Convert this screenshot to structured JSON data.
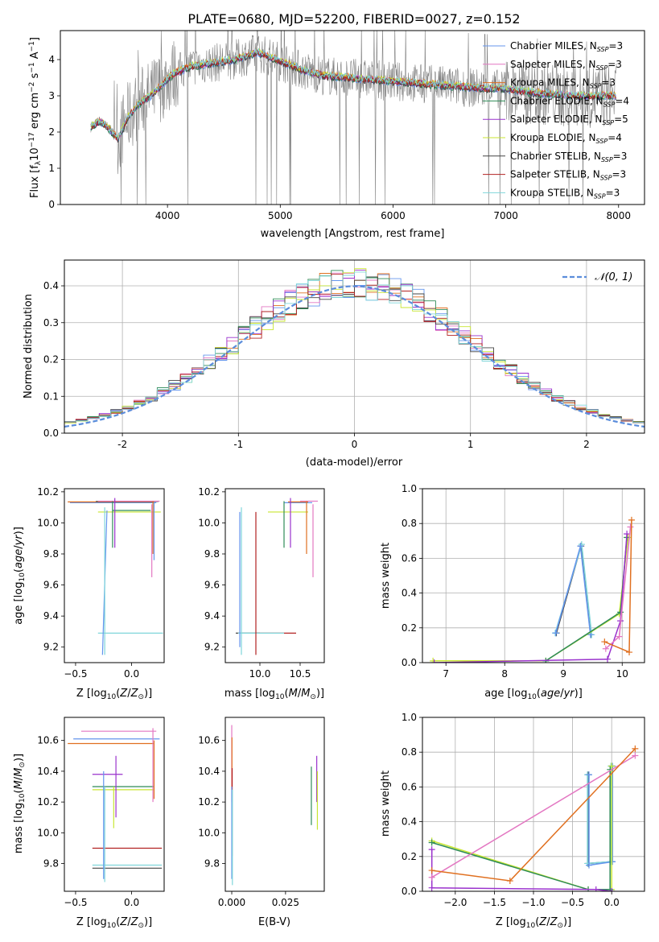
{
  "figure": {
    "title": "PLATE=0680, MJD=52200, FIBERID=0027, z=0.152"
  },
  "models": [
    {
      "name": "Chabrier MILES",
      "nssp": "3",
      "color": "#6495ED"
    },
    {
      "name": "Salpeter MILES",
      "nssp": "3",
      "color": "#E377C2"
    },
    {
      "name": "Kroupa MILES",
      "nssp": "3",
      "color": "#E07020"
    },
    {
      "name": "Chabrier ELODIE",
      "nssp": "4",
      "color": "#2E8B57"
    },
    {
      "name": "Salpeter ELODIE",
      "nssp": "5",
      "color": "#9A32CD"
    },
    {
      "name": "Kroupa ELODIE",
      "nssp": "4",
      "color": "#C8E632"
    },
    {
      "name": "Chabrier STELIB",
      "nssp": "3",
      "color": "#444444"
    },
    {
      "name": "Salpeter STELIB",
      "nssp": "3",
      "color": "#B22222"
    },
    {
      "name": "Kroupa STELIB",
      "nssp": "3",
      "color": "#7FD6DA"
    }
  ],
  "chart_data": [
    {
      "id": "spectrum",
      "type": "line",
      "xlabel": "wavelength [Angstrom, rest frame]",
      "ylabel": "Flux [f_λ 10^-17 erg cm^-2 s^-1 A^-1]",
      "xlim": [
        3050,
        8230
      ],
      "ylim": [
        0,
        4.8
      ],
      "xticks": [
        4000,
        5000,
        6000,
        7000,
        8000
      ],
      "yticks": [
        0,
        1,
        2,
        3,
        4
      ],
      "data_color": "#808080",
      "continuum": {
        "x": [
          3300,
          3400,
          3480,
          3560,
          3650,
          3750,
          3850,
          3950,
          4050,
          4200,
          4400,
          4600,
          4800,
          5000,
          5200,
          5400,
          5600,
          5800,
          6000,
          6200,
          6400,
          6600,
          6800,
          7000,
          7200,
          7400,
          7600,
          7800,
          8000,
          8200
        ],
        "y": [
          2.1,
          2.3,
          2.1,
          1.8,
          2.4,
          2.8,
          3.0,
          3.3,
          3.6,
          3.8,
          3.9,
          4.0,
          4.2,
          3.95,
          3.7,
          3.55,
          3.5,
          3.45,
          3.4,
          3.35,
          3.3,
          3.25,
          3.2,
          3.2,
          3.1,
          3.05,
          3.0,
          3.0,
          3.0,
          3.0
        ]
      },
      "legend_loc": "upper right"
    },
    {
      "id": "residuals",
      "type": "step",
      "xlabel": "(data-model)/error",
      "ylabel": "Normed distribution",
      "xlim": [
        -2.5,
        2.5
      ],
      "ylim": [
        0,
        0.47
      ],
      "xticks": [
        -2,
        -1,
        0,
        1,
        2
      ],
      "yticks": [
        0.0,
        0.1,
        0.2,
        0.3,
        0.4
      ],
      "gaussian_label": "N(0,1)",
      "gaussian_color": "#5B8DDB",
      "bin_width": 0.1,
      "legend_loc": "upper right",
      "grid": true
    },
    {
      "id": "age_vs_z",
      "type": "errorbar",
      "xlabel": "Z [log10(Z/Z⊙)]",
      "ylabel": "age [log10(age/yr)]",
      "xlim": [
        -0.6,
        0.29
      ],
      "ylim": [
        9.1,
        10.22
      ],
      "xticks": [
        -0.5,
        0.0
      ],
      "yticks": [
        9.2,
        9.4,
        9.6,
        9.8,
        10.0,
        10.2
      ],
      "segments": [
        {
          "m": 0,
          "x": [
            -0.55,
            0.22
          ],
          "y": [
            10.13,
            10.13
          ]
        },
        {
          "m": 2,
          "x": [
            -0.57,
            0.2
          ],
          "y": [
            10.135,
            10.135
          ]
        },
        {
          "m": 6,
          "x": [
            -0.32,
            0.24
          ],
          "y": [
            10.138,
            10.138
          ]
        },
        {
          "m": 1,
          "x": [
            -0.3,
            0.25
          ],
          "y": [
            10.14,
            10.14
          ]
        },
        {
          "m": 5,
          "x": [
            -0.3,
            0.26
          ],
          "y": [
            10.07,
            10.07
          ]
        },
        {
          "m": 3,
          "x": [
            -0.17,
            0.17
          ],
          "y": [
            10.08,
            10.08
          ]
        },
        {
          "m": 8,
          "x": [
            -0.3,
            0.28
          ],
          "y": [
            9.29,
            9.29
          ]
        },
        {
          "m": 0,
          "x": [
            -0.26,
            -0.22
          ],
          "y": [
            9.15,
            10.08
          ]
        },
        {
          "m": 8,
          "x": [
            -0.24,
            -0.24
          ],
          "y": [
            9.15,
            10.1
          ]
        },
        {
          "m": 4,
          "x": [
            -0.15,
            -0.15
          ],
          "y": [
            9.84,
            10.16
          ]
        },
        {
          "m": 3,
          "x": [
            -0.17,
            -0.17
          ],
          "y": [
            9.84,
            10.14
          ]
        },
        {
          "m": 1,
          "x": [
            0.18,
            0.18
          ],
          "y": [
            9.65,
            10.12
          ]
        },
        {
          "m": 2,
          "x": [
            0.19,
            0.19
          ],
          "y": [
            9.8,
            10.14
          ]
        },
        {
          "m": 0,
          "x": [
            0.2,
            0.2
          ],
          "y": [
            9.76,
            10.13
          ]
        }
      ]
    },
    {
      "id": "age_vs_mass",
      "type": "errorbar",
      "xlabel": "mass [log10(M/M⊙)]",
      "ylabel": "",
      "xlim": [
        9.57,
        10.8
      ],
      "ylim": [
        9.1,
        10.22
      ],
      "xticks": [
        10.0,
        10.5
      ],
      "yticks": [
        9.2,
        9.4,
        9.6,
        9.8,
        10.0,
        10.2
      ],
      "segments": [
        {
          "m": 6,
          "x": [
            9.7,
            10.0
          ],
          "y": [
            9.29,
            9.29
          ]
        },
        {
          "m": 7,
          "x": [
            9.95,
            10.45
          ],
          "y": [
            9.29,
            9.29
          ]
        },
        {
          "m": 8,
          "x": [
            9.73,
            10.3
          ],
          "y": [
            9.29,
            9.29
          ]
        },
        {
          "m": 0,
          "x": [
            9.75,
            9.75
          ],
          "y": [
            9.2,
            10.07
          ]
        },
        {
          "m": 7,
          "x": [
            9.95,
            9.95
          ],
          "y": [
            9.15,
            10.07
          ]
        },
        {
          "m": 8,
          "x": [
            9.77,
            9.77
          ],
          "y": [
            9.15,
            10.1
          ]
        },
        {
          "m": 5,
          "x": [
            10.1,
            10.6
          ],
          "y": [
            10.07,
            10.07
          ]
        },
        {
          "m": 0,
          "x": [
            10.3,
            10.65
          ],
          "y": [
            10.13,
            10.13
          ]
        },
        {
          "m": 2,
          "x": [
            10.35,
            10.6
          ],
          "y": [
            10.135,
            10.135
          ]
        },
        {
          "m": 1,
          "x": [
            10.5,
            10.72
          ],
          "y": [
            10.14,
            10.14
          ]
        },
        {
          "m": 3,
          "x": [
            10.3,
            10.3
          ],
          "y": [
            9.84,
            10.14
          ]
        },
        {
          "m": 4,
          "x": [
            10.38,
            10.38
          ],
          "y": [
            9.84,
            10.16
          ]
        },
        {
          "m": 1,
          "x": [
            10.66,
            10.66
          ],
          "y": [
            9.65,
            10.12
          ]
        },
        {
          "m": 2,
          "x": [
            10.58,
            10.58
          ],
          "y": [
            9.8,
            10.14
          ]
        }
      ]
    },
    {
      "id": "weight_vs_age",
      "type": "line",
      "xlabel": "age [log10(age/yr)]",
      "ylabel": "mass weight",
      "xlim": [
        6.6,
        10.38
      ],
      "ylim": [
        0,
        1.0
      ],
      "xticks": [
        7,
        8,
        9,
        10
      ],
      "yticks": [
        0.0,
        0.2,
        0.4,
        0.6,
        0.8,
        1.0
      ],
      "grid": true,
      "series": [
        {
          "m": 6,
          "x": [
            8.88,
            9.3,
            9.47
          ],
          "y": [
            0.17,
            0.67,
            0.16
          ]
        },
        {
          "m": 8,
          "x": [
            8.86,
            9.31,
            9.48
          ],
          "y": [
            0.17,
            0.68,
            0.16
          ]
        },
        {
          "m": 0,
          "x": [
            8.87,
            9.29,
            9.46
          ],
          "y": [
            0.17,
            0.67,
            0.16
          ]
        },
        {
          "m": 5,
          "x": [
            6.78,
            8.7,
            9.95,
            10.1
          ],
          "y": [
            0.01,
            0.01,
            0.28,
            0.72
          ]
        },
        {
          "m": 3,
          "x": [
            8.7,
            9.97,
            10.08
          ],
          "y": [
            0.01,
            0.29,
            0.72
          ]
        },
        {
          "m": 4,
          "x": [
            6.8,
            9.75,
            9.97,
            10.08
          ],
          "y": [
            0.0,
            0.02,
            0.24,
            0.74
          ]
        },
        {
          "m": 1,
          "x": [
            9.72,
            9.95,
            10.14
          ],
          "y": [
            0.08,
            0.15,
            0.78
          ]
        },
        {
          "m": 2,
          "x": [
            9.7,
            10.12,
            10.16
          ],
          "y": [
            0.12,
            0.06,
            0.82
          ]
        }
      ]
    },
    {
      "id": "mass_vs_z",
      "type": "errorbar",
      "xlabel": "Z [log10(Z/Z⊙)]",
      "ylabel": "mass [log10(M/M⊙)]",
      "xlim": [
        -0.6,
        0.29
      ],
      "ylim": [
        9.62,
        10.75
      ],
      "xticks": [
        -0.5,
        0.0
      ],
      "yticks": [
        9.8,
        10.0,
        10.2,
        10.4,
        10.6
      ],
      "segments": [
        {
          "m": 1,
          "x": [
            -0.45,
            0.22
          ],
          "y": [
            10.66,
            10.66
          ]
        },
        {
          "m": 0,
          "x": [
            -0.52,
            0.25
          ],
          "y": [
            10.61,
            10.61
          ]
        },
        {
          "m": 2,
          "x": [
            -0.57,
            0.2
          ],
          "y": [
            10.58,
            10.58
          ]
        },
        {
          "m": 4,
          "x": [
            -0.35,
            -0.08
          ],
          "y": [
            10.38,
            10.38
          ]
        },
        {
          "m": 3,
          "x": [
            -0.35,
            0.2
          ],
          "y": [
            10.3,
            10.3
          ]
        },
        {
          "m": 5,
          "x": [
            -0.35,
            0.2
          ],
          "y": [
            10.28,
            10.28
          ]
        },
        {
          "m": 7,
          "x": [
            -0.35,
            0.27
          ],
          "y": [
            9.9,
            9.9
          ]
        },
        {
          "m": 8,
          "x": [
            -0.35,
            0.27
          ],
          "y": [
            9.79,
            9.79
          ]
        },
        {
          "m": 6,
          "x": [
            -0.35,
            0.27
          ],
          "y": [
            9.77,
            9.77
          ]
        },
        {
          "m": 0,
          "x": [
            -0.25,
            -0.25
          ],
          "y": [
            9.7,
            10.4
          ]
        },
        {
          "m": 8,
          "x": [
            -0.24,
            -0.24
          ],
          "y": [
            9.68,
            10.3
          ]
        },
        {
          "m": 4,
          "x": [
            -0.14,
            -0.14
          ],
          "y": [
            10.1,
            10.5
          ]
        },
        {
          "m": 5,
          "x": [
            -0.16,
            -0.16
          ],
          "y": [
            10.03,
            10.3
          ]
        },
        {
          "m": 1,
          "x": [
            0.19,
            0.19
          ],
          "y": [
            10.2,
            10.68
          ]
        },
        {
          "m": 2,
          "x": [
            0.2,
            0.2
          ],
          "y": [
            10.22,
            10.6
          ]
        }
      ]
    },
    {
      "id": "mass_vs_ebv",
      "type": "errorbar",
      "xlabel": "E(B-V)",
      "ylabel": "",
      "xlim": [
        -0.003,
        0.043
      ],
      "ylim": [
        9.62,
        10.75
      ],
      "xticks": [
        0.0,
        0.025
      ],
      "tick_labels": [
        "0.000",
        "0.025"
      ],
      "yticks": [
        9.8,
        10.0,
        10.2,
        10.4,
        10.6
      ],
      "segments": [
        {
          "m": 1,
          "x": [
            0.0,
            0.0
          ],
          "y": [
            10.2,
            10.7
          ]
        },
        {
          "m": 2,
          "x": [
            0.0001,
            0.0001
          ],
          "y": [
            10.3,
            10.62
          ]
        },
        {
          "m": 7,
          "x": [
            0.0002,
            0.0002
          ],
          "y": [
            9.85,
            10.42
          ]
        },
        {
          "m": 0,
          "x": [
            0.0,
            0.0
          ],
          "y": [
            9.7,
            10.3
          ]
        },
        {
          "m": 8,
          "x": [
            0.0003,
            0.0003
          ],
          "y": [
            9.66,
            10.28
          ]
        },
        {
          "m": 3,
          "x": [
            0.037,
            0.037
          ],
          "y": [
            10.05,
            10.43
          ]
        },
        {
          "m": 4,
          "x": [
            0.0395,
            0.0395
          ],
          "y": [
            10.2,
            10.5
          ]
        },
        {
          "m": 5,
          "x": [
            0.0398,
            0.0398
          ],
          "y": [
            10.02,
            10.4
          ]
        }
      ]
    },
    {
      "id": "weight_vs_z",
      "type": "line",
      "xlabel": "Z [log10(Z/Z⊙)]",
      "ylabel": "mass weight",
      "xlim": [
        -2.42,
        0.42
      ],
      "ylim": [
        0,
        1.0
      ],
      "xticks": [
        -2.0,
        -1.5,
        -1.0,
        -0.5,
        0.0
      ],
      "yticks": [
        0.0,
        0.2,
        0.4,
        0.6,
        0.8,
        1.0
      ],
      "grid": true,
      "series": [
        {
          "m": 6,
          "x": [
            -0.3,
            -0.3,
            0.0,
            0.0
          ],
          "y": [
            0.67,
            0.16,
            0.17,
            0.72
          ]
        },
        {
          "m": 8,
          "x": [
            -0.31,
            -0.31,
            -0.01,
            -0.01
          ],
          "y": [
            0.67,
            0.16,
            0.17,
            0.72
          ]
        },
        {
          "m": 0,
          "x": [
            -0.29,
            -0.29,
            0.01,
            0.01
          ],
          "y": [
            0.67,
            0.15,
            0.17,
            0.72
          ]
        },
        {
          "m": 5,
          "x": [
            -2.3,
            -0.3,
            0.0,
            0.0
          ],
          "y": [
            0.29,
            0.01,
            0.01,
            0.72
          ]
        },
        {
          "m": 3,
          "x": [
            -2.3,
            -0.3,
            -0.02,
            -0.02
          ],
          "y": [
            0.28,
            0.01,
            0.01,
            0.7
          ]
        },
        {
          "m": 4,
          "x": [
            -2.3,
            -2.3,
            -0.2,
            0.0
          ],
          "y": [
            0.24,
            0.02,
            0.01,
            0.0
          ]
        },
        {
          "m": 1,
          "x": [
            -2.3,
            0.3
          ],
          "y": [
            0.08,
            0.78
          ]
        },
        {
          "m": 2,
          "x": [
            -2.3,
            -1.3,
            0.3
          ],
          "y": [
            0.12,
            0.06,
            0.82
          ]
        }
      ]
    }
  ]
}
